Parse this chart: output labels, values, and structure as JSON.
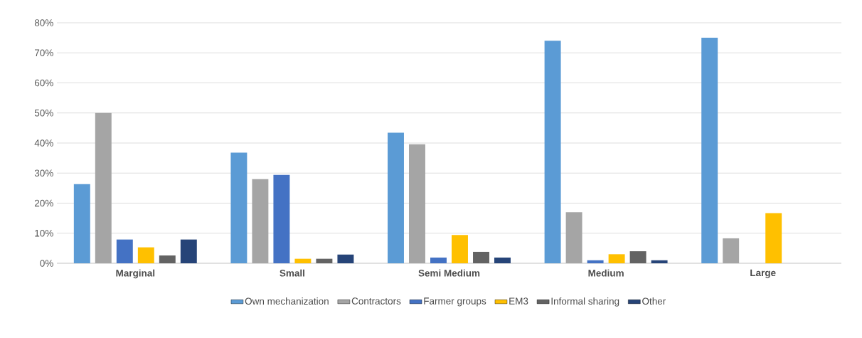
{
  "chart_data": {
    "type": "bar",
    "categories": [
      "Marginal",
      "Small",
      "Semi Medium",
      "Medium",
      "Large"
    ],
    "series": [
      {
        "name": "Own mechanization",
        "color": "#5b9bd5",
        "values": [
          26.3,
          36.8,
          43.4,
          74,
          75
        ]
      },
      {
        "name": "Contractors",
        "color": "#a5a5a5",
        "values": [
          50,
          28,
          39.6,
          17,
          8.3
        ]
      },
      {
        "name": "Farmer groups",
        "color": "#4472c4",
        "values": [
          7.9,
          29.4,
          1.9,
          1,
          null
        ]
      },
      {
        "name": "EM3",
        "color": "#ffc000",
        "values": [
          5.3,
          1.5,
          9.4,
          3,
          16.7
        ]
      },
      {
        "name": "Informal sharing",
        "color": "#636363",
        "values": [
          2.6,
          1.5,
          3.8,
          4,
          null
        ]
      },
      {
        "name": "Other",
        "color": "#264478",
        "values": [
          7.9,
          2.9,
          1.9,
          1,
          null
        ]
      }
    ],
    "ylim": [
      0,
      80
    ],
    "yticks": [
      {
        "value": 0,
        "label": "0%"
      },
      {
        "value": 10,
        "label": "10%"
      },
      {
        "value": 20,
        "label": "20%"
      },
      {
        "value": 30,
        "label": "30%"
      },
      {
        "value": 40,
        "label": "40%"
      },
      {
        "value": 50,
        "label": "50%"
      },
      {
        "value": 60,
        "label": "60%"
      },
      {
        "value": 70,
        "label": "70%"
      },
      {
        "value": 80,
        "label": "80%"
      }
    ],
    "grid": "y",
    "legend": "bottom"
  }
}
